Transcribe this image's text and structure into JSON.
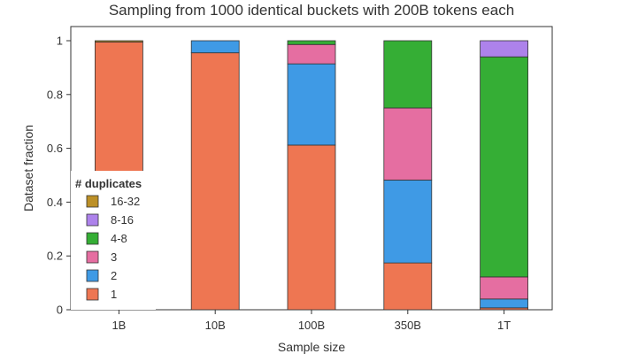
{
  "chart_data": {
    "type": "bar",
    "stacked": true,
    "title": "Sampling from 1000 identical buckets with 200B tokens each",
    "xlabel": "Sample size",
    "ylabel": "Dataset fraction",
    "ylim": [
      0,
      1
    ],
    "yticks": [
      "0",
      "0.2",
      "0.4",
      "0.6",
      "0.8",
      "1"
    ],
    "categories": [
      "1B",
      "10B",
      "100B",
      "350B",
      "1T"
    ],
    "legend": {
      "title": "# duplicates",
      "placement": "left"
    },
    "series": [
      {
        "name": "1",
        "color": "#ee7652",
        "values": [
          0.995,
          0.955,
          0.612,
          0.174,
          0.007
        ]
      },
      {
        "name": "2",
        "color": "#3f9ae5",
        "values": [
          0.0,
          0.045,
          0.302,
          0.308,
          0.033
        ]
      },
      {
        "name": "3",
        "color": "#e56ea1",
        "values": [
          0.0,
          0.0,
          0.072,
          0.268,
          0.082
        ]
      },
      {
        "name": "4-8",
        "color": "#35ae35",
        "values": [
          0.0,
          0.0,
          0.014,
          0.25,
          0.818
        ]
      },
      {
        "name": "8-16",
        "color": "#ad82eb",
        "values": [
          0.0,
          0.0,
          0.0,
          0.0,
          0.06
        ]
      },
      {
        "name": "16-32",
        "color": "#bc9027",
        "values": [
          0.005,
          0.0,
          0.0,
          0.0,
          0.0
        ]
      }
    ]
  }
}
